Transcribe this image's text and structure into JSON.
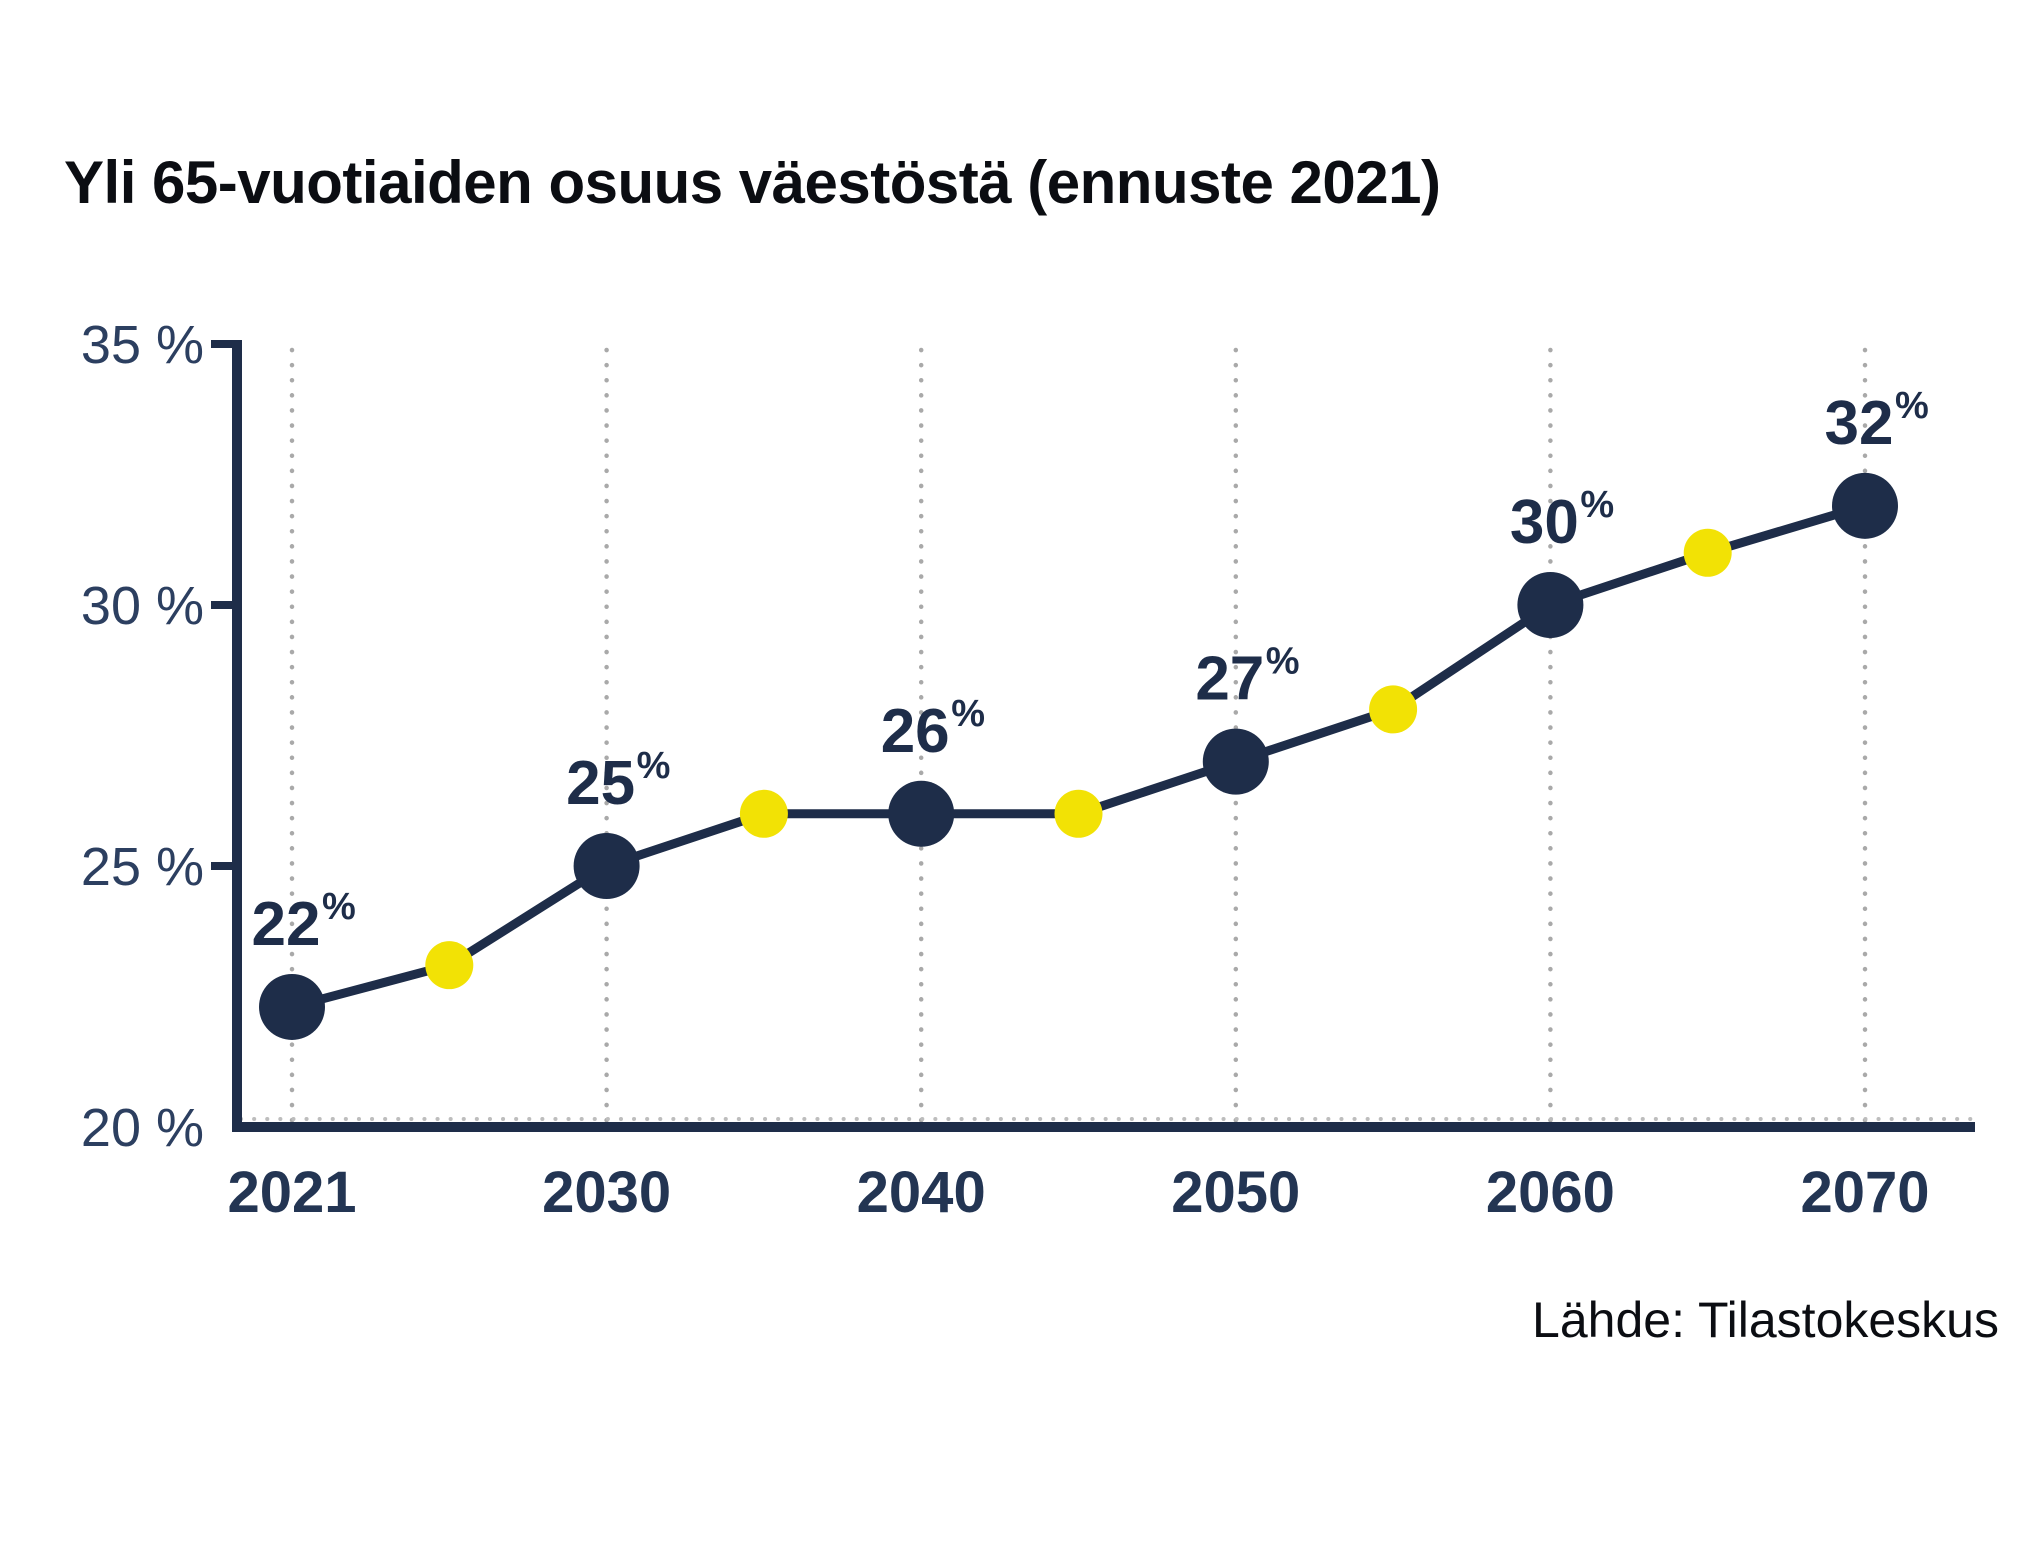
{
  "title": "Yli 65-vuotiaiden osuus väestöstä (ennuste 2021)",
  "source": "Lähde: Tilastokeskus",
  "colors": {
    "navy": "#1e2d49",
    "yellow": "#f2e205",
    "axis": "#1e2d49",
    "tick_label": "#2c3f60",
    "year_label": "#233553",
    "point_label": "#1e2d49",
    "gridline": "#a9a9a9",
    "baseline_dots": "#bdbdbd",
    "title_text": "#0b0d12",
    "background": "#ffffff"
  },
  "chart_data": {
    "type": "line",
    "title": "Yli 65-vuotiaiden osuus väestöstä (ennuste 2021)",
    "source": "Lähde: Tilastokeskus",
    "unit": "%",
    "grid": "vertical-dotted",
    "legend": "none",
    "y_axis": {
      "range": [
        20,
        35
      ],
      "tick_values": [
        35,
        30,
        25,
        20
      ],
      "tick_labels": [
        "35 %",
        "30 %",
        "25 %",
        "20 %"
      ]
    },
    "x_axis": {
      "tick_labels": [
        "2021",
        "2030",
        "2040",
        "2050",
        "2060",
        "2070"
      ],
      "tick_years": [
        2021,
        2030,
        2040,
        2050,
        2060,
        2070
      ]
    },
    "series": [
      {
        "name": "Osuus väestöstä",
        "points": [
          {
            "year": 2021,
            "slot": 0,
            "value": 22.3,
            "label": "22",
            "label_suffix": "%",
            "marker": "major"
          },
          {
            "year": 2025,
            "slot": 0.5,
            "value": 23.1,
            "marker": "minor"
          },
          {
            "year": 2030,
            "slot": 1,
            "value": 25.0,
            "label": "25",
            "label_suffix": "%",
            "marker": "major"
          },
          {
            "year": 2035,
            "slot": 1.5,
            "value": 26.0,
            "marker": "minor"
          },
          {
            "year": 2040,
            "slot": 2,
            "value": 26.0,
            "label": "26",
            "label_suffix": "%",
            "marker": "major"
          },
          {
            "year": 2045,
            "slot": 2.5,
            "value": 26.0,
            "marker": "minor"
          },
          {
            "year": 2050,
            "slot": 3,
            "value": 27.0,
            "label": "27",
            "label_suffix": "%",
            "marker": "major"
          },
          {
            "year": 2055,
            "slot": 3.5,
            "value": 28.0,
            "marker": "minor"
          },
          {
            "year": 2060,
            "slot": 4,
            "value": 30.0,
            "label": "30",
            "label_suffix": "%",
            "marker": "major"
          },
          {
            "year": 2065,
            "slot": 4.5,
            "value": 31.0,
            "marker": "minor"
          },
          {
            "year": 2070,
            "slot": 5,
            "value": 31.9,
            "label": "32",
            "label_suffix": "%",
            "marker": "major"
          }
        ]
      }
    ]
  }
}
